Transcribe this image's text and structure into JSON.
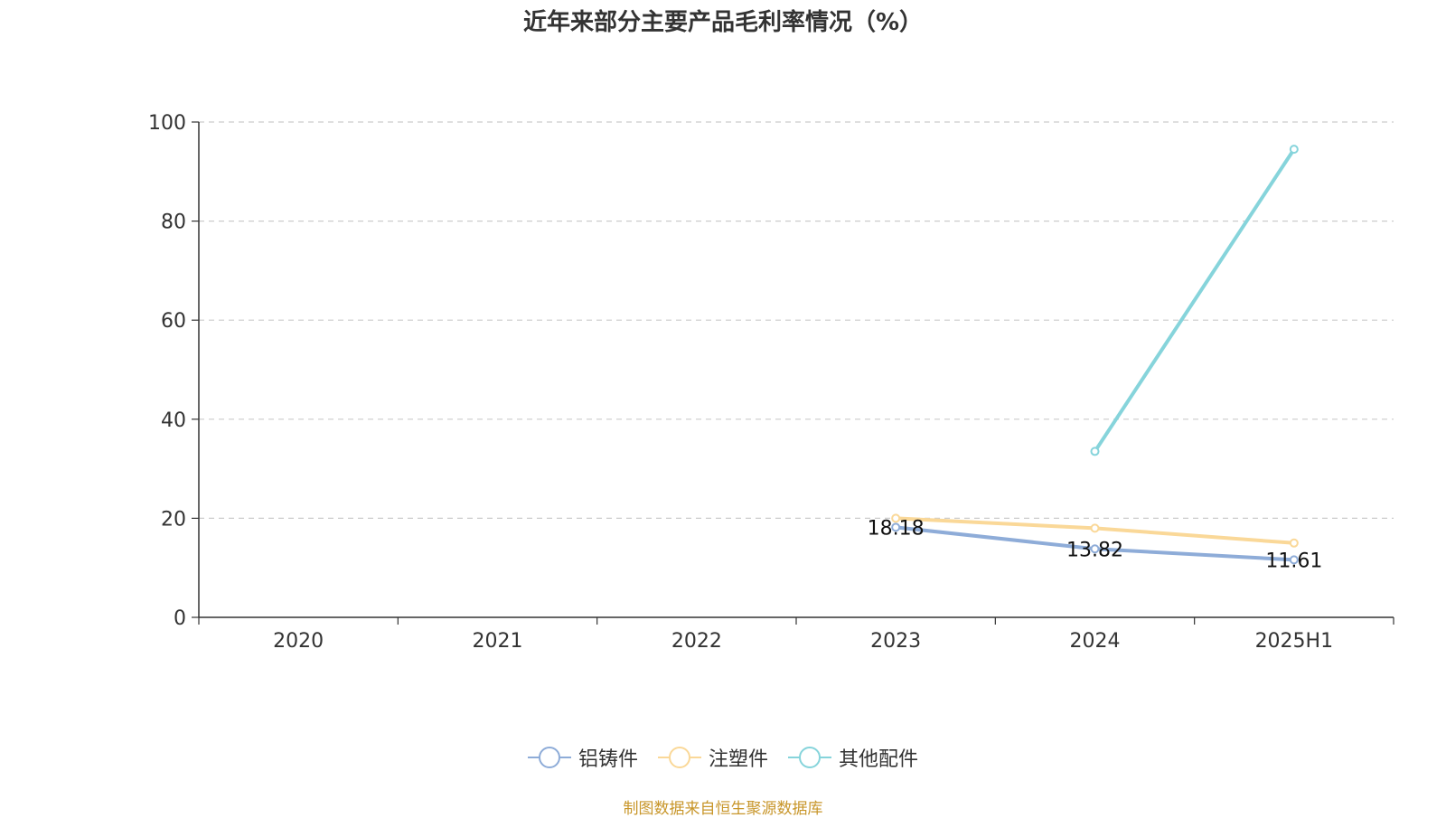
{
  "title": "近年来部分主要产品毛利率情况（%）",
  "source_note": "制图数据来自恒生聚源数据库",
  "chart_data": {
    "type": "line",
    "title": "近年来部分主要产品毛利率情况（%）",
    "categories": [
      "2020",
      "2021",
      "2022",
      "2023",
      "2024",
      "2025H1"
    ],
    "ylim": [
      0,
      100
    ],
    "yticks": [
      0,
      20,
      40,
      60,
      80,
      100
    ],
    "grid": true,
    "legend_position": "bottom-center",
    "series": [
      {
        "name": "铝铸件",
        "color": "#8eacd8",
        "values": [
          null,
          null,
          null,
          18.18,
          13.82,
          11.61
        ],
        "labels": [
          "",
          "",
          "",
          "18.18",
          "13.82",
          "11.61"
        ]
      },
      {
        "name": "注塑件",
        "color": "#fad898",
        "values": [
          null,
          null,
          null,
          20.0,
          18.0,
          15.0
        ],
        "labels": [
          "",
          "",
          "",
          "",
          "",
          ""
        ]
      },
      {
        "name": "其他配件",
        "color": "#86d4db",
        "values": [
          null,
          null,
          null,
          null,
          33.5,
          94.5
        ],
        "labels": [
          "",
          "",
          "",
          "",
          "",
          ""
        ]
      }
    ]
  }
}
